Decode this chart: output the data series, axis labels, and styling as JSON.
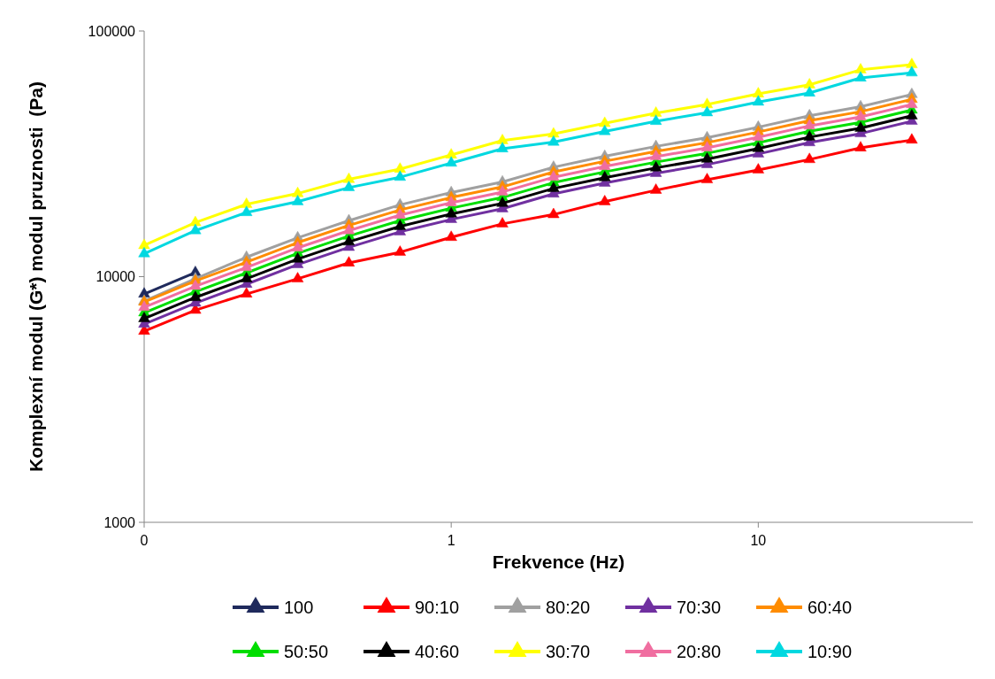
{
  "chart_data": {
    "type": "line",
    "xlabel": "Frekvence (Hz)",
    "ylabel": "Komplexní modul (G*) modul pruznosti  (Pa)",
    "log": "xy",
    "grid": false,
    "legend": "bottom",
    "marker": "triangle",
    "line_style": "solid",
    "x": [
      0.1,
      0.1468,
      0.2154,
      0.3162,
      0.4642,
      0.6813,
      1,
      1.468,
      2.154,
      3.162,
      4.642,
      6.813,
      10,
      14.68,
      21.54,
      31.62
    ],
    "xlim": [
      0.1,
      50
    ],
    "xticks": [
      {
        "value": 0.1,
        "label": "0"
      },
      1,
      10
    ],
    "ylim": [
      1000,
      100000
    ],
    "yticks": [
      1000,
      10000,
      100000
    ],
    "series": [
      {
        "name": "100",
        "color": "#1f2a5c",
        "values": [
          8500,
          10400,
          null,
          null,
          null,
          null,
          null,
          null,
          null,
          null,
          null,
          null,
          null,
          null,
          null,
          null
        ]
      },
      {
        "name": "90:10",
        "color": "#ff0000",
        "values": [
          6000,
          7300,
          8500,
          9800,
          11370,
          12570,
          14460,
          16400,
          17900,
          20200,
          22480,
          24820,
          27200,
          30000,
          33450,
          36000
        ]
      },
      {
        "name": "80:20",
        "color": "#a0a0a0",
        "values": [
          7950,
          9800,
          12000,
          14400,
          16900,
          19600,
          22000,
          24300,
          27900,
          30900,
          33900,
          36800,
          40600,
          45200,
          49200,
          55200
        ]
      },
      {
        "name": "70:30",
        "color": "#7030a0",
        "values": [
          6410,
          7810,
          9320,
          11200,
          13170,
          15220,
          17100,
          18900,
          21720,
          24030,
          26330,
          28600,
          31590,
          35140,
          38220,
          42920
        ]
      },
      {
        "name": "60:40",
        "color": "#ff8c00",
        "values": [
          7880,
          9600,
          11450,
          13760,
          16170,
          18690,
          21000,
          23200,
          26670,
          29500,
          32340,
          35120,
          38800,
          43160,
          46940,
          52710
        ]
      },
      {
        "name": "50:50",
        "color": "#00dd00",
        "values": [
          7130,
          8680,
          10360,
          12450,
          14630,
          16910,
          19000,
          21000,
          24130,
          26700,
          29260,
          31780,
          35100,
          39050,
          42470,
          47690
        ]
      },
      {
        "name": "40:60",
        "color": "#000000",
        "values": [
          6750,
          8230,
          9810,
          11790,
          13860,
          16020,
          18000,
          19890,
          22860,
          25290,
          27720,
          30100,
          33260,
          36990,
          40230,
          45180
        ]
      },
      {
        "name": "30:70",
        "color": "#ffff00",
        "values": [
          13400,
          16600,
          19700,
          21800,
          24900,
          27400,
          31300,
          35800,
          38100,
          42100,
          46300,
          50200,
          55500,
          60400,
          69500,
          73000
        ]
      },
      {
        "name": "20:80",
        "color": "#f06ea0",
        "values": [
          7500,
          9140,
          10900,
          13100,
          15400,
          17800,
          20000,
          22100,
          25400,
          28100,
          30800,
          33450,
          36950,
          41100,
          44700,
          50200
        ]
      },
      {
        "name": "10:90",
        "color": "#00d8e0",
        "values": [
          12400,
          15400,
          18250,
          20200,
          23050,
          25400,
          29000,
          33170,
          35300,
          39000,
          42900,
          46500,
          51400,
          55950,
          64400,
          67600
        ]
      }
    ]
  }
}
